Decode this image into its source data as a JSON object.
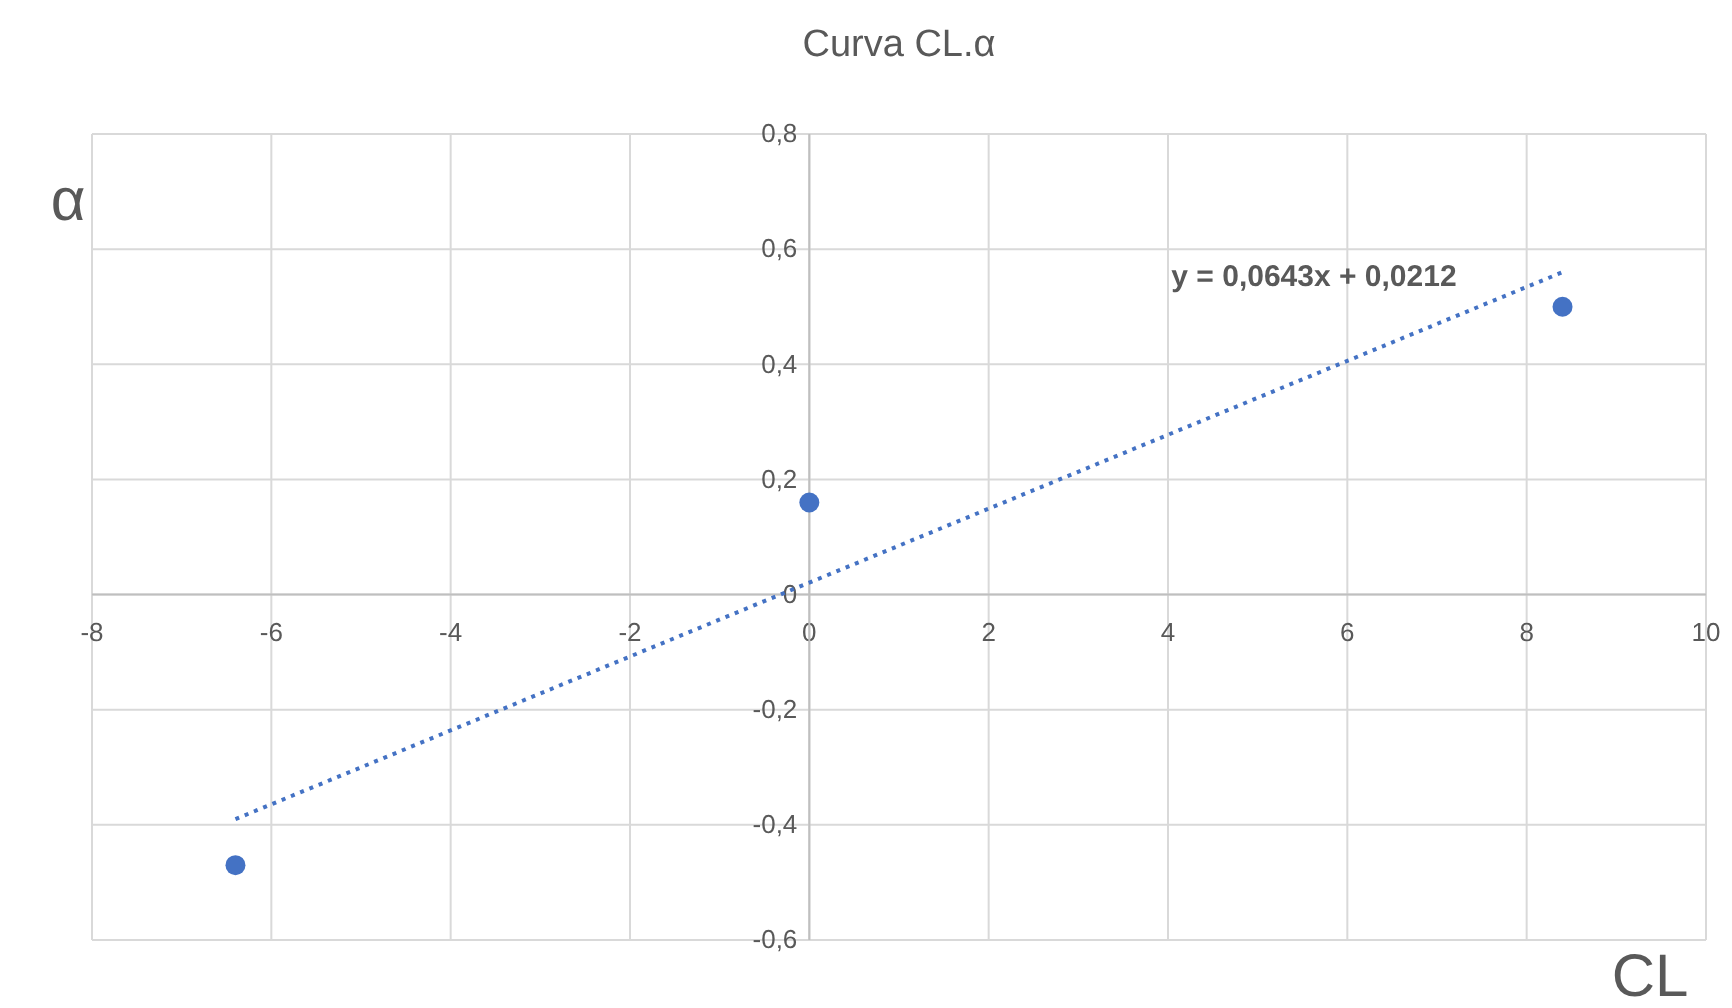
{
  "chart_data": {
    "type": "scatter",
    "title": "Curva CL.α",
    "xlabel": "CL",
    "ylabel": "α",
    "xlim": [
      -8,
      10
    ],
    "xticks": [
      -8,
      -6,
      -4,
      -2,
      0,
      2,
      4,
      6,
      8,
      10
    ],
    "ylim": [
      -0.6,
      0.8
    ],
    "yticks": [
      {
        "value": -0.6,
        "label": "-0,6"
      },
      {
        "value": -0.4,
        "label": "-0,4"
      },
      {
        "value": -0.2,
        "label": "-0,2"
      },
      {
        "value": 0,
        "label": "0"
      },
      {
        "value": 0.2,
        "label": "0,2"
      },
      {
        "value": 0.4,
        "label": "0,4"
      },
      {
        "value": 0.6,
        "label": "0,6"
      },
      {
        "value": 0.8,
        "label": "0,8"
      }
    ],
    "grid": true,
    "marker": "circle",
    "series": [
      {
        "color": "#4472c4",
        "x": [
          -6.4,
          0,
          8.4
        ],
        "values": [
          -0.47,
          0.16,
          0.5
        ]
      },
      {
        "type": "line",
        "color": "#4472c4",
        "line_style": "dotted",
        "marker": "none",
        "x": [
          -6.4,
          8.4
        ],
        "values": [
          -0.39,
          0.56
        ]
      }
    ],
    "annotations": [
      "y = 0,0643x + 0,0212"
    ]
  }
}
